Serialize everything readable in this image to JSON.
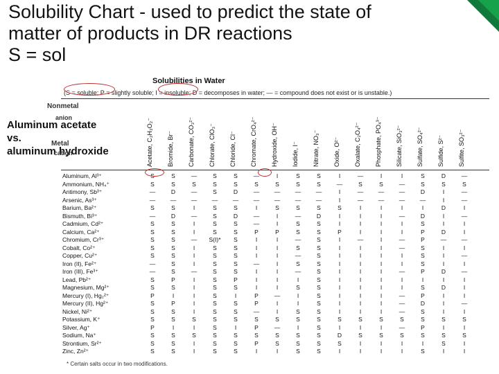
{
  "title_l1": "Solubility Chart - used to predict the state of",
  "title_l2": "matter of products in DR reactions",
  "title_l3": "S = sol",
  "chart_heading": "Solubilities in Water",
  "legend_text": "(S = soluble; P = slightly soluble; I = insoluble; D = decomposes in water; — = compound does not exist or is unstable.)",
  "nonmetal": "Nonmetal",
  "anion": "anion",
  "metal": "Metal",
  "cation": "cation",
  "overlay_l1": "Aluminum acetate",
  "overlay_l2": "vs.",
  "overlay_l3": "aluminum hydroxide",
  "columns": [
    "Acetate, C₂H₃O₂⁻",
    "Bromide, Br⁻",
    "Carbonate, CO₃²⁻",
    "Chlorate, ClO₃⁻",
    "Chloride, Cl⁻",
    "Chromate, CrO₄²⁻",
    "Hydroxide, OH⁻",
    "Iodide, I⁻",
    "Nitrate, NO₃⁻",
    "Oxide, O²⁻",
    "Oxalate, C₂O₄²⁻",
    "Phosphate, PO₄³⁻",
    "Silicate, SiO₃²⁻",
    "Sulfate, SO₄²⁻",
    "Sulfide, S²⁻",
    "Sulfite, SO₃²⁻"
  ],
  "rows": [
    {
      "label": "Aluminum, Al³⁺",
      "v": [
        "S",
        "S",
        "—",
        "S",
        "S",
        "—",
        "I",
        "S",
        "S",
        "I",
        "—",
        "I",
        "I",
        "S",
        "D",
        "—"
      ]
    },
    {
      "label": "Ammonium, NH₄⁺",
      "v": [
        "S",
        "S",
        "S",
        "S",
        "S",
        "S",
        "S",
        "S",
        "S",
        "—",
        "S",
        "S",
        "—",
        "S",
        "S",
        "S"
      ]
    },
    {
      "label": "Antimony, Sb³⁺",
      "v": [
        "—",
        "D",
        "—",
        "S",
        "D",
        "—",
        "—",
        "—",
        "—",
        "I",
        "—",
        "—",
        "—",
        "D",
        "I",
        "—"
      ]
    },
    {
      "label": "Arsenic, As³⁺",
      "v": [
        "—",
        "—",
        "—",
        "—",
        "—",
        "—",
        "—",
        "—",
        "—",
        "I",
        "—",
        "—",
        "—",
        "—",
        "I",
        "—"
      ]
    },
    {
      "label": "Barium, Ba²⁺",
      "v": [
        "S",
        "S",
        "I",
        "S",
        "S",
        "I",
        "S",
        "S",
        "S",
        "S",
        "I",
        "I",
        "I",
        "I",
        "D",
        "I"
      ]
    },
    {
      "label": "Bismuth, Bi³⁺",
      "v": [
        "—",
        "D",
        "—",
        "S",
        "D",
        "—",
        "I",
        "—",
        "D",
        "I",
        "I",
        "I",
        "—",
        "D",
        "I",
        "—"
      ]
    },
    {
      "label": "Cadmium, Cd²⁺",
      "v": [
        "S",
        "S",
        "I",
        "S",
        "S",
        "—",
        "I",
        "S",
        "S",
        "I",
        "I",
        "I",
        "I",
        "S",
        "I",
        "I"
      ]
    },
    {
      "label": "Calcium, Ca²⁺",
      "v": [
        "S",
        "S",
        "I",
        "S",
        "S",
        "P",
        "P",
        "S",
        "S",
        "P",
        "I",
        "I",
        "I",
        "P",
        "D",
        "I"
      ]
    },
    {
      "label": "Chromium, Cr³⁺",
      "v": [
        "S",
        "S",
        "—",
        "S(I)*",
        "S",
        "I",
        "I",
        "—",
        "S",
        "I",
        "—",
        "I",
        "—",
        "P",
        "—",
        "—"
      ]
    },
    {
      "label": "Cobalt, Co²⁺",
      "v": [
        "S",
        "S",
        "I",
        "S",
        "S",
        "I",
        "I",
        "S",
        "S",
        "I",
        "I",
        "I",
        "—",
        "S",
        "I",
        "I"
      ]
    },
    {
      "label": "Copper, Cu²⁺",
      "v": [
        "S",
        "S",
        "I",
        "S",
        "S",
        "I",
        "I",
        "—",
        "S",
        "I",
        "I",
        "I",
        "I",
        "S",
        "I",
        "—"
      ]
    },
    {
      "label": "Iron (II), Fe²⁺",
      "v": [
        "—",
        "S",
        "I",
        "S",
        "S",
        "—",
        "I",
        "S",
        "S",
        "I",
        "I",
        "I",
        "I",
        "S",
        "I",
        "I"
      ]
    },
    {
      "label": "Iron (III), Fe³⁺",
      "v": [
        "—",
        "S",
        "—",
        "S",
        "S",
        "I",
        "I",
        "—",
        "S",
        "I",
        "I",
        "I",
        "—",
        "P",
        "D",
        "—"
      ]
    },
    {
      "label": "Lead, Pb²⁺",
      "v": [
        "S",
        "P",
        "I",
        "S",
        "P",
        "I",
        "I",
        "I",
        "S",
        "I",
        "I",
        "I",
        "I",
        "I",
        "I",
        "I"
      ]
    },
    {
      "label": "Magnesium, Mg²⁺",
      "v": [
        "S",
        "S",
        "I",
        "S",
        "S",
        "I",
        "I",
        "S",
        "S",
        "I",
        "I",
        "I",
        "I",
        "S",
        "D",
        "I"
      ]
    },
    {
      "label": "Mercury (I), Hg₂²⁺",
      "v": [
        "P",
        "I",
        "I",
        "S",
        "I",
        "P",
        "—",
        "I",
        "S",
        "I",
        "I",
        "I",
        "—",
        "P",
        "I",
        "I"
      ]
    },
    {
      "label": "Mercury (II), Hg²⁺",
      "v": [
        "S",
        "P",
        "I",
        "S",
        "S",
        "P",
        "I",
        "I",
        "S",
        "I",
        "I",
        "I",
        "—",
        "D",
        "I",
        "—"
      ]
    },
    {
      "label": "Nickel, Ni²⁺",
      "v": [
        "S",
        "S",
        "I",
        "S",
        "S",
        "—",
        "I",
        "S",
        "S",
        "I",
        "I",
        "I",
        "—",
        "S",
        "I",
        "I"
      ]
    },
    {
      "label": "Potassium, K⁺",
      "v": [
        "S",
        "S",
        "S",
        "S",
        "S",
        "S",
        "S",
        "S",
        "S",
        "S",
        "S",
        "S",
        "S",
        "S",
        "S",
        "S"
      ]
    },
    {
      "label": "Silver, Ag⁺",
      "v": [
        "P",
        "I",
        "I",
        "S",
        "I",
        "P",
        "—",
        "I",
        "S",
        "I",
        "I",
        "I",
        "—",
        "P",
        "I",
        "I"
      ]
    },
    {
      "label": "Sodium, Na⁺",
      "v": [
        "S",
        "S",
        "S",
        "S",
        "S",
        "S",
        "S",
        "S",
        "S",
        "D",
        "S",
        "S",
        "S",
        "S",
        "S",
        "S"
      ]
    },
    {
      "label": "Strontium, Sr²⁺",
      "v": [
        "S",
        "S",
        "I",
        "S",
        "S",
        "P",
        "S",
        "S",
        "S",
        "S",
        "I",
        "I",
        "I",
        "I",
        "S",
        "I"
      ]
    },
    {
      "label": "Zinc, Zn²⁺",
      "v": [
        "S",
        "S",
        "I",
        "S",
        "S",
        "I",
        "I",
        "S",
        "S",
        "I",
        "I",
        "I",
        "I",
        "S",
        "I",
        "I"
      ]
    }
  ],
  "footnote": "* Certain salts occur in two modifications.",
  "col_gap": 30,
  "row_h": 11.5,
  "colors": {
    "accent": "#15a24a",
    "ring": "#c03030",
    "text": "#111"
  }
}
